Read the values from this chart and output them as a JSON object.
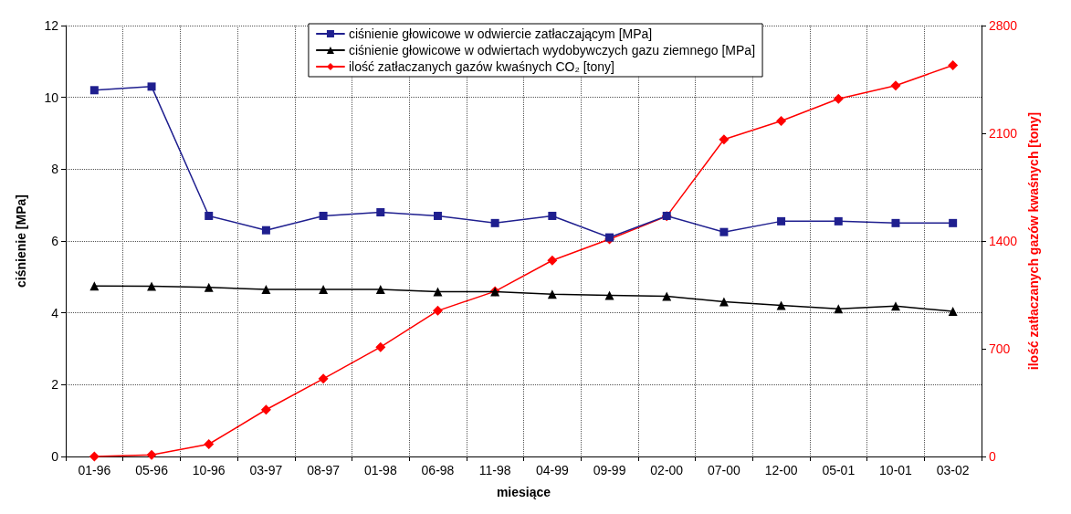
{
  "chart_data": {
    "type": "line",
    "xlabel": "miesiące",
    "ylabel": "ciśnienie [MPa]",
    "y2label": "ilość zatłaczanych gazów kwaśnych [tony]",
    "categories": [
      "01-96",
      "05-96",
      "10-96",
      "03-97",
      "08-97",
      "01-98",
      "06-98",
      "11-98",
      "04-99",
      "09-99",
      "02-00",
      "07-00",
      "12-00",
      "05-01",
      "10-01",
      "03-02"
    ],
    "series": [
      {
        "name": "ciśnienie głowicowe w odwiercie zatłaczającym [MPa]",
        "color": "#1f1f8f",
        "marker": "square",
        "values": [
          10.2,
          10.3,
          6.7,
          6.3,
          6.7,
          6.8,
          6.7,
          6.5,
          6.7,
          6.1,
          6.7,
          6.25,
          6.55,
          6.55,
          6.5,
          6.5
        ]
      },
      {
        "name": "ciśnienie głowicowe w odwiertach wydobywczych gazu ziemnego [MPa]",
        "color": "#000000",
        "marker": "triangle",
        "values": [
          4.75,
          4.74,
          4.71,
          4.65,
          4.65,
          4.65,
          4.59,
          4.59,
          4.52,
          4.49,
          4.46,
          4.31,
          4.21,
          4.11,
          4.19,
          4.04
        ]
      },
      {
        "name": "ilość zatłaczanych gazów kwaśnych CO₂ [tony]",
        "color": "#ff0000",
        "marker": "diamond",
        "axis": "y2",
        "values": [
          0,
          11,
          80,
          304,
          505,
          711,
          947,
          1073,
          1274,
          1412,
          1561,
          2060,
          2180,
          2324,
          2410,
          2542
        ]
      }
    ],
    "ylim": [
      0,
      12
    ],
    "yticks": [
      0,
      2,
      4,
      6,
      8,
      10,
      12
    ],
    "y2lim": [
      0,
      2800
    ],
    "y2ticks": [
      0,
      700,
      1400,
      2100,
      2800
    ],
    "grid": true,
    "legend": "top",
    "line_style": "solid"
  }
}
